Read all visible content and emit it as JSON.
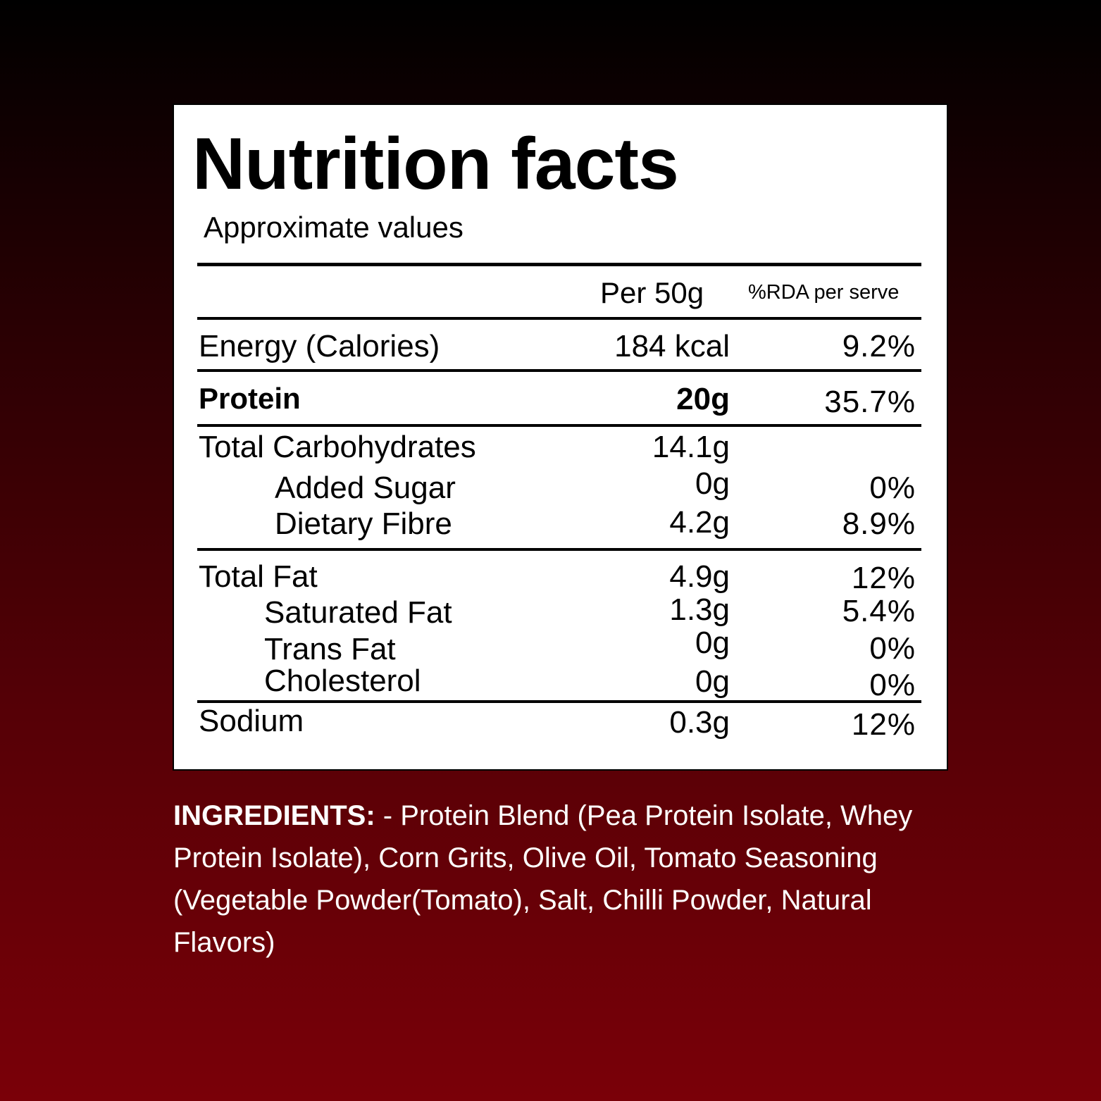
{
  "label": {
    "title": "Nutrition facts",
    "subtitle": "Approximate values",
    "col_per": "Per 50g",
    "col_rda": "%RDA per serve",
    "rows": [
      {
        "name": "Energy (Calories)",
        "value": "184 kcal",
        "rda": "9.2%"
      },
      {
        "name": "Protein",
        "value": "20g",
        "rda": "35.7%"
      },
      {
        "name": "Total Carbohydrates",
        "value": "14.1g",
        "rda": ""
      },
      {
        "name": "Added Sugar",
        "value": "0g",
        "rda": "0%"
      },
      {
        "name": "Dietary Fibre",
        "value": "4.2g",
        "rda": "8.9%"
      },
      {
        "name": "Total Fat",
        "value": "4.9g",
        "rda": "12%"
      },
      {
        "name": "Saturated Fat",
        "value": "1.3g",
        "rda": "5.4%"
      },
      {
        "name": "Trans Fat",
        "value": "0g",
        "rda": "0%"
      },
      {
        "name": "Cholesterol",
        "value": "0g",
        "rda": "0%"
      },
      {
        "name": "Sodium",
        "value": "0.3g",
        "rda": "12%"
      }
    ]
  },
  "ingredients": {
    "heading": "INGREDIENTS:",
    "text": " - Protein Blend (Pea Protein Isolate, Whey Protein Isolate), Corn Grits, Olive Oil, Tomato Seasoning (Vegetable Powder(Tomato), Salt, Chilli Powder, Natural Flavors)"
  }
}
